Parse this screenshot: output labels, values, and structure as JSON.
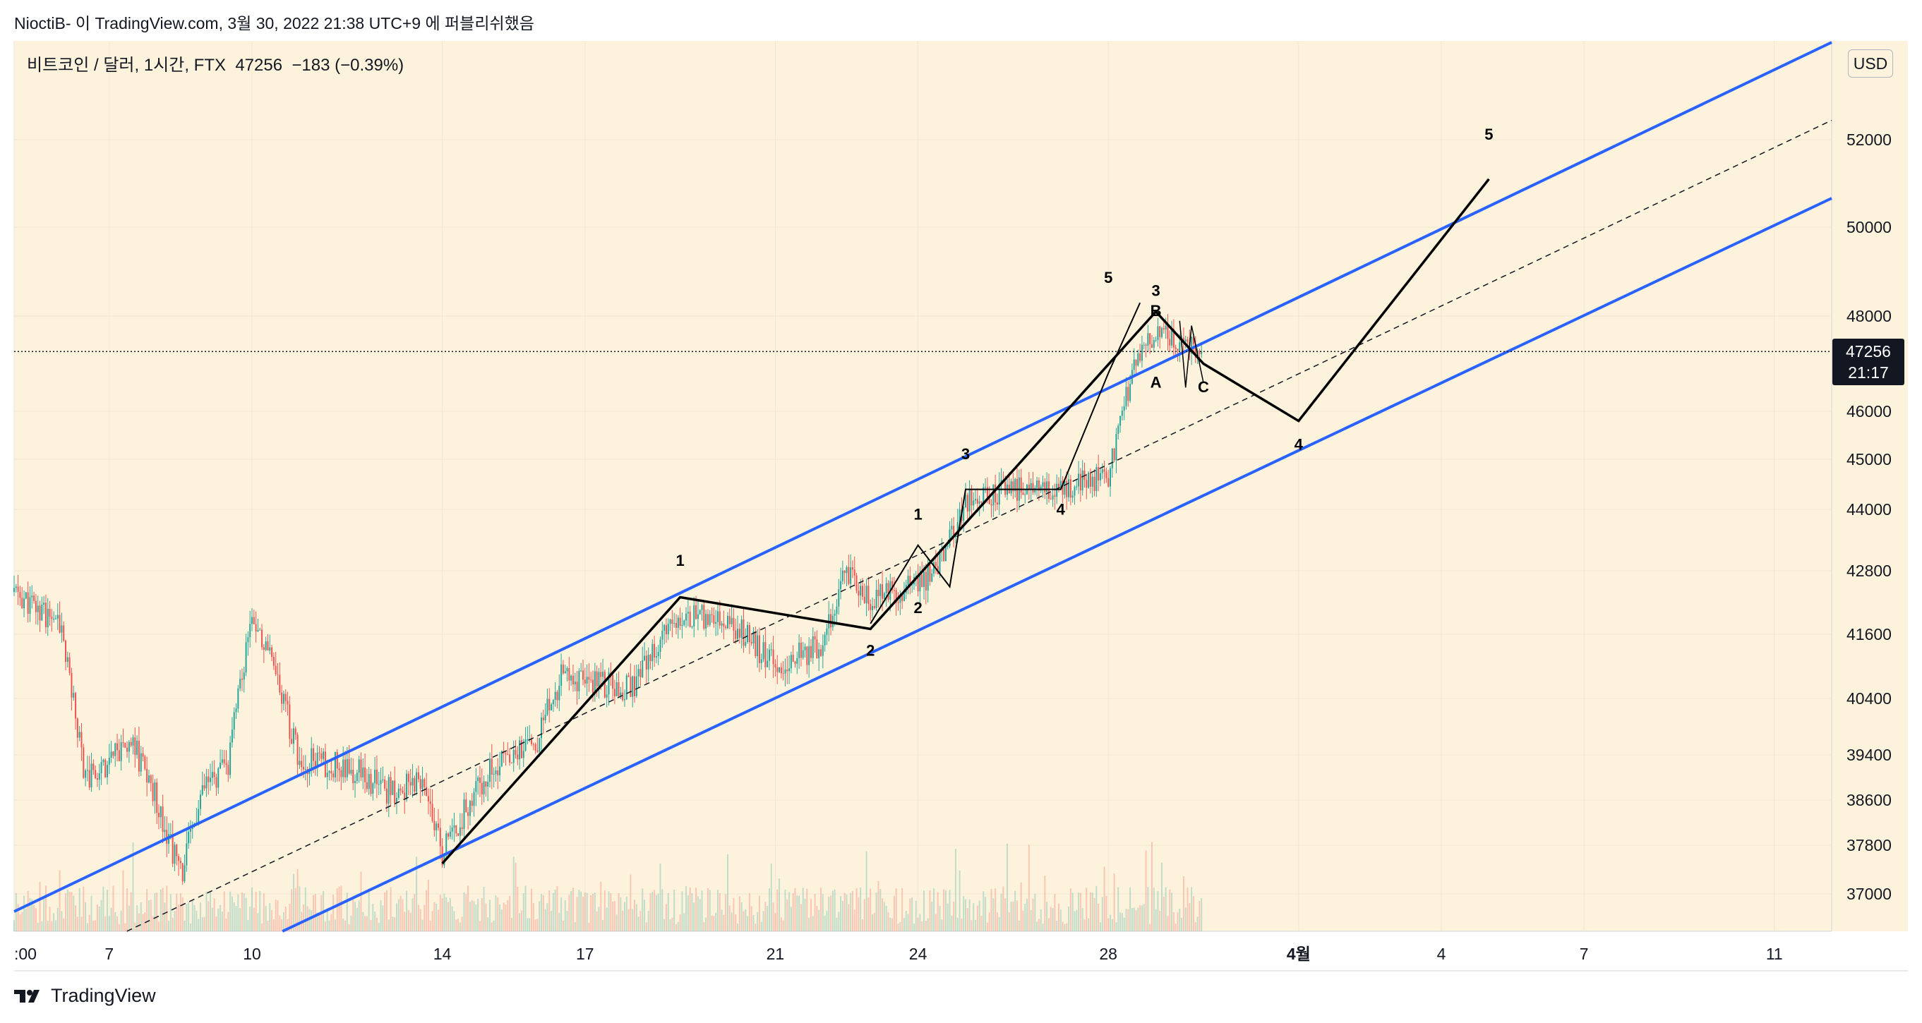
{
  "header": {
    "text": "NioctiB- 이 TradingView.com, 3월 30, 2022 21:38 UTC+9 에 퍼블리쉬했음"
  },
  "legend": {
    "text": "비트코인 / 달러, 1시간, FTX  47256  −183 (−0.39%)"
  },
  "currency_button": "USD",
  "last_price": {
    "price": "47256",
    "countdown": "21:17"
  },
  "footer": {
    "brand": "TradingView"
  },
  "colors": {
    "background": "#fdf3dc",
    "channel": "#2962ff",
    "up": "#26a69a",
    "down": "#ef5350",
    "wave": "#000000"
  },
  "chart_data": {
    "type": "candlestick",
    "symbol": "비트코인 / 달러",
    "interval": "1시간",
    "exchange": "FTX",
    "last": 47256,
    "change": -183,
    "change_pct": -0.39,
    "y_ticks": [
      37000,
      37800,
      38600,
      39400,
      40400,
      41600,
      42800,
      44000,
      45000,
      46000,
      48000,
      50000,
      52000
    ],
    "x_ticks": [
      ":00",
      "7",
      "10",
      "14",
      "17",
      "21",
      "24",
      "28",
      "4월",
      "4",
      "7",
      "11"
    ],
    "price_path": [
      [
        "Mar 5",
        42400
      ],
      [
        "Mar 6",
        41700
      ],
      [
        "Mar 6 12h",
        39000
      ],
      [
        "Mar 7",
        39300
      ],
      [
        "Mar 7 12h",
        39600
      ],
      [
        "Mar 8",
        38600
      ],
      [
        "Mar 8 12h",
        37300
      ],
      [
        "Mar 9",
        38800
      ],
      [
        "Mar 9 12h",
        39200
      ],
      [
        "Mar 10",
        42100
      ],
      [
        "Mar 10 12h",
        40800
      ],
      [
        "Mar 11",
        39300
      ],
      [
        "Mar 12",
        39200
      ],
      [
        "Mar 13",
        38700
      ],
      [
        "Mar 13 12h",
        39000
      ],
      [
        "Mar 14",
        37700
      ],
      [
        "Mar 15",
        39200
      ],
      [
        "Mar 16",
        39700
      ],
      [
        "Mar 16 12h",
        40800
      ],
      [
        "Mar 17",
        40700
      ],
      [
        "Mar 18",
        40600
      ],
      [
        "Mar 19",
        42000
      ],
      [
        "Mar 20",
        41900
      ],
      [
        "Mar 21",
        41000
      ],
      [
        "Mar 22",
        41400
      ],
      [
        "Mar 22 12h",
        42800
      ],
      [
        "Mar 23",
        42300
      ],
      [
        "Mar 24",
        42500
      ],
      [
        "Mar 24 12h",
        43000
      ],
      [
        "Mar 25",
        44200
      ],
      [
        "Mar 26",
        44400
      ],
      [
        "Mar 27",
        44400
      ],
      [
        "Mar 28",
        44700
      ],
      [
        "Mar 28 12h",
        46800
      ],
      [
        "Mar 29",
        47700
      ],
      [
        "Mar 30",
        47256
      ]
    ],
    "wave_labels": [
      {
        "text": "1",
        "date": "Mar 19",
        "price": 42900
      },
      {
        "text": "2",
        "date": "Mar 23",
        "price": 41200
      },
      {
        "text": "1",
        "date": "Mar 24",
        "price": 43800
      },
      {
        "text": "2",
        "date": "Mar 24",
        "price": 42000
      },
      {
        "text": "3",
        "date": "Mar 25",
        "price": 45000
      },
      {
        "text": "4",
        "date": "Mar 27",
        "price": 43900
      },
      {
        "text": "5",
        "date": "Mar 28",
        "price": 48750
      },
      {
        "text": "3",
        "date": "Mar 29",
        "price": 48450
      },
      {
        "text": "B",
        "date": "Mar 29",
        "price": 48000
      },
      {
        "text": "A",
        "date": "Mar 29",
        "price": 46500
      },
      {
        "text": "C",
        "date": "Mar 30",
        "price": 46400
      },
      {
        "text": "4",
        "date": "Apr 1",
        "price": 45200
      },
      {
        "text": "5",
        "date": "Apr 5",
        "price": 52000
      }
    ]
  }
}
